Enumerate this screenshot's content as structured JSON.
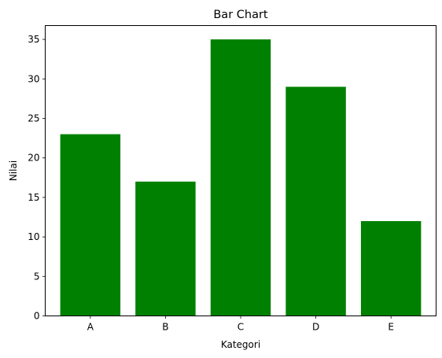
{
  "chart_data": {
    "type": "bar",
    "title": "Bar Chart",
    "xlabel": "Kategori",
    "ylabel": "Nilai",
    "categories": [
      "A",
      "B",
      "C",
      "D",
      "E"
    ],
    "values": [
      23,
      17,
      35,
      29,
      12
    ],
    "ylim": [
      0,
      36.75
    ],
    "yticks": [
      0,
      5,
      10,
      15,
      20,
      25,
      30,
      35
    ],
    "bar_color": "#008000",
    "grid": false,
    "legend": "none"
  }
}
